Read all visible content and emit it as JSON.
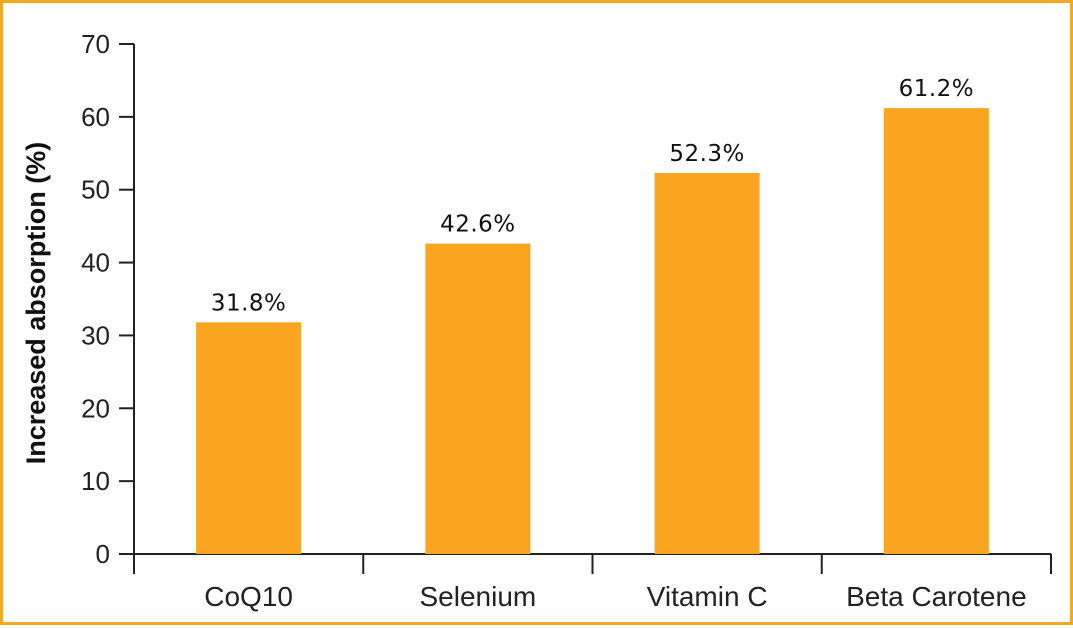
{
  "chart_data": {
    "type": "bar",
    "title": "",
    "xlabel": "",
    "ylabel": "Increased absorption (%)",
    "categories": [
      "CoQ10",
      "Selenium",
      "Vitamin C",
      "Beta Carotene"
    ],
    "values": [
      31.8,
      42.6,
      52.3,
      61.2
    ],
    "data_labels": [
      "31.8%",
      "42.6%",
      "52.3%",
      "61.2%"
    ],
    "ylim": [
      0,
      70
    ],
    "yticks": [
      0,
      10,
      20,
      30,
      40,
      50,
      60,
      70
    ],
    "grid": false,
    "legend": "none",
    "bar_color": "#f9a51f",
    "frame_color": "#f0a825"
  }
}
